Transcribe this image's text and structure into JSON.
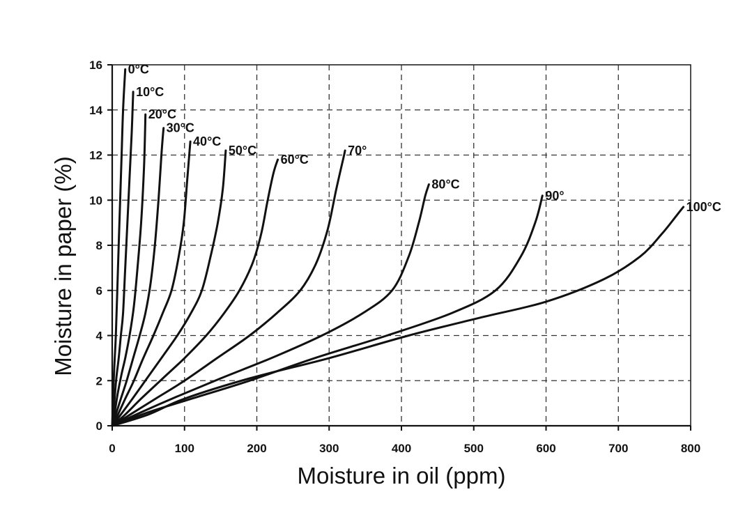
{
  "chart_data": {
    "type": "line",
    "title": "",
    "xlabel": "Moisture in oil (ppm)",
    "ylabel": "Moisture in paper (%)",
    "xlim": [
      0,
      800
    ],
    "ylim": [
      0,
      16
    ],
    "xticks": [
      0,
      100,
      200,
      300,
      400,
      500,
      600,
      700,
      800
    ],
    "yticks": [
      0,
      2,
      4,
      6,
      8,
      10,
      12,
      14,
      16
    ],
    "grid": true,
    "grid_style": "dashed",
    "series": [
      {
        "name": "0°C",
        "points": [
          [
            0,
            0
          ],
          [
            1,
            1
          ],
          [
            2,
            2
          ],
          [
            3.5,
            3
          ],
          [
            5,
            4
          ],
          [
            7,
            6
          ],
          [
            9,
            8
          ],
          [
            11,
            10
          ],
          [
            13,
            12
          ],
          [
            15,
            14
          ],
          [
            18,
            15.8
          ]
        ]
      },
      {
        "name": "10°C",
        "points": [
          [
            0,
            0
          ],
          [
            2,
            0.7
          ],
          [
            4,
            1.5
          ],
          [
            6,
            2.2
          ],
          [
            9,
            3
          ],
          [
            12,
            4
          ],
          [
            15,
            5
          ],
          [
            18,
            7
          ],
          [
            21,
            9
          ],
          [
            24,
            11
          ],
          [
            27,
            13
          ],
          [
            29,
            14.8
          ]
        ]
      },
      {
        "name": "20°C",
        "points": [
          [
            0,
            0
          ],
          [
            4,
            0.7
          ],
          [
            8,
            1.5
          ],
          [
            13,
            2.3
          ],
          [
            18,
            3
          ],
          [
            24,
            4
          ],
          [
            30,
            5.3
          ],
          [
            35,
            7
          ],
          [
            40,
            9
          ],
          [
            44,
            11.5
          ],
          [
            46,
            13.8
          ]
        ]
      },
      {
        "name": "30°C",
        "points": [
          [
            0,
            0
          ],
          [
            5,
            0.5
          ],
          [
            12,
            1.2
          ],
          [
            20,
            2
          ],
          [
            29,
            3
          ],
          [
            38,
            4
          ],
          [
            46,
            5
          ],
          [
            53,
            6.3
          ],
          [
            59,
            8
          ],
          [
            64,
            10
          ],
          [
            68,
            12
          ],
          [
            71,
            13.2
          ]
        ]
      },
      {
        "name": "40°C",
        "points": [
          [
            0,
            0
          ],
          [
            8,
            0.5
          ],
          [
            18,
            1.2
          ],
          [
            30,
            2
          ],
          [
            43,
            3
          ],
          [
            57,
            4
          ],
          [
            70,
            5
          ],
          [
            82,
            6
          ],
          [
            92,
            7.5
          ],
          [
            99,
            9
          ],
          [
            104,
            11
          ],
          [
            108,
            12.6
          ]
        ]
      },
      {
        "name": "50°C",
        "points": [
          [
            0,
            0
          ],
          [
            12,
            0.5
          ],
          [
            28,
            1.2
          ],
          [
            48,
            2.1
          ],
          [
            68,
            3
          ],
          [
            90,
            4
          ],
          [
            109,
            5
          ],
          [
            124,
            6
          ],
          [
            136,
            7.5
          ],
          [
            146,
            9
          ],
          [
            153,
            10.5
          ],
          [
            157,
            12.2
          ]
        ]
      },
      {
        "name": "60°C",
        "points": [
          [
            0,
            0
          ],
          [
            18,
            0.5
          ],
          [
            40,
            1.2
          ],
          [
            70,
            2.1
          ],
          [
            100,
            3
          ],
          [
            130,
            4
          ],
          [
            155,
            5
          ],
          [
            176,
            6
          ],
          [
            194,
            7.2
          ],
          [
            206,
            8.5
          ],
          [
            215,
            10
          ],
          [
            223,
            11.2
          ],
          [
            229,
            11.8
          ]
        ]
      },
      {
        "name": "70°",
        "points": [
          [
            0,
            0
          ],
          [
            25,
            0.5
          ],
          [
            60,
            1.2
          ],
          [
            100,
            2
          ],
          [
            145,
            3
          ],
          [
            190,
            4
          ],
          [
            228,
            5
          ],
          [
            260,
            6
          ],
          [
            282,
            7.2
          ],
          [
            298,
            8.7
          ],
          [
            310,
            10.5
          ],
          [
            320,
            11.9
          ],
          [
            322,
            12.2
          ]
        ]
      },
      {
        "name": "80°C",
        "points": [
          [
            0,
            0
          ],
          [
            40,
            0.6
          ],
          [
            90,
            1.3
          ],
          [
            150,
            2.1
          ],
          [
            220,
            3
          ],
          [
            290,
            4
          ],
          [
            347,
            5
          ],
          [
            387,
            6
          ],
          [
            410,
            7.5
          ],
          [
            424,
            9
          ],
          [
            433,
            10.2
          ],
          [
            438,
            10.7
          ]
        ]
      },
      {
        "name": "90°",
        "points": [
          [
            0,
            0
          ],
          [
            50,
            0.6
          ],
          [
            110,
            1.2
          ],
          [
            190,
            2
          ],
          [
            280,
            3
          ],
          [
            380,
            4
          ],
          [
            470,
            5
          ],
          [
            530,
            6
          ],
          [
            565,
            7.5
          ],
          [
            585,
            9
          ],
          [
            595,
            10.2
          ]
        ]
      },
      {
        "name": "100°C",
        "points": [
          [
            0,
            0
          ],
          [
            50,
            0.5
          ],
          [
            100,
            1.2
          ],
          [
            190,
            2.1
          ],
          [
            300,
            3
          ],
          [
            410,
            4
          ],
          [
            510,
            4.8
          ],
          [
            600,
            5.5
          ],
          [
            680,
            6.5
          ],
          [
            730,
            7.5
          ],
          [
            760,
            8.5
          ],
          [
            780,
            9.3
          ],
          [
            790,
            9.7
          ]
        ]
      }
    ]
  }
}
